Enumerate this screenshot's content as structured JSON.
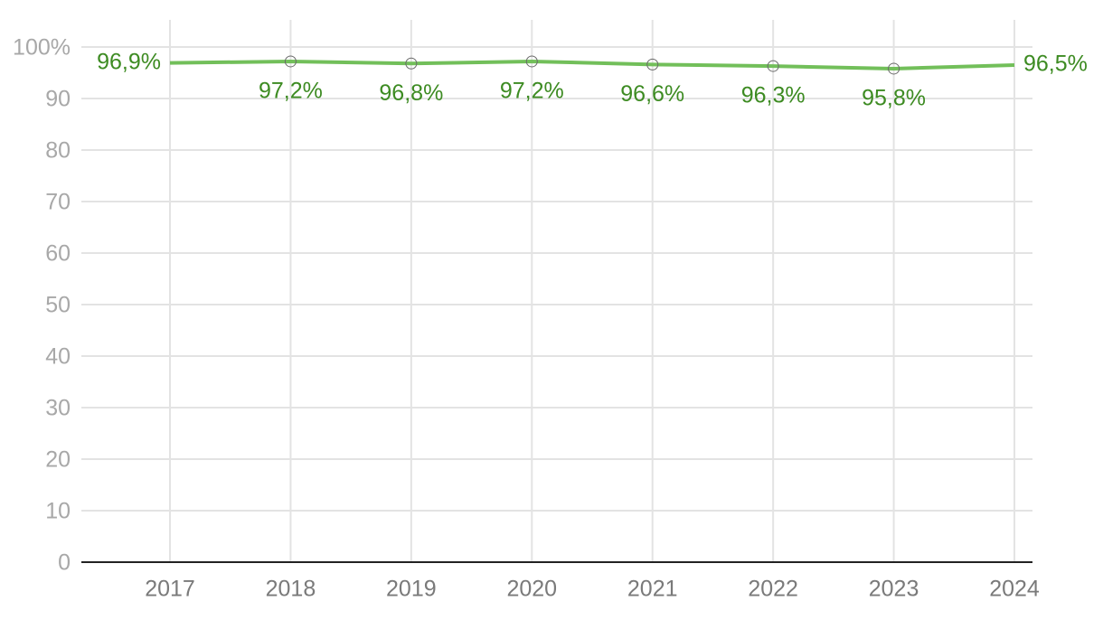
{
  "chart_data": {
    "type": "line",
    "categories": [
      "2017",
      "2018",
      "2019",
      "2020",
      "2021",
      "2022",
      "2023",
      "2024"
    ],
    "series": [
      {
        "color": "#72bf5a",
        "marker_color": "#6a6a6a",
        "label_color": "#3d8b22",
        "values": [
          96.9,
          97.2,
          96.8,
          97.2,
          96.6,
          96.3,
          95.8,
          96.5
        ],
        "value_labels": [
          "96,9%",
          "97,2%",
          "96,8%",
          "97,2%",
          "96,6%",
          "96,3%",
          "95,8%",
          "96,5%"
        ]
      }
    ],
    "ylim": [
      0,
      100
    ],
    "yticks": [
      0,
      10,
      20,
      30,
      40,
      50,
      60,
      70,
      80,
      90,
      {
        "value": 100,
        "label": "100%"
      }
    ],
    "grid": true
  }
}
